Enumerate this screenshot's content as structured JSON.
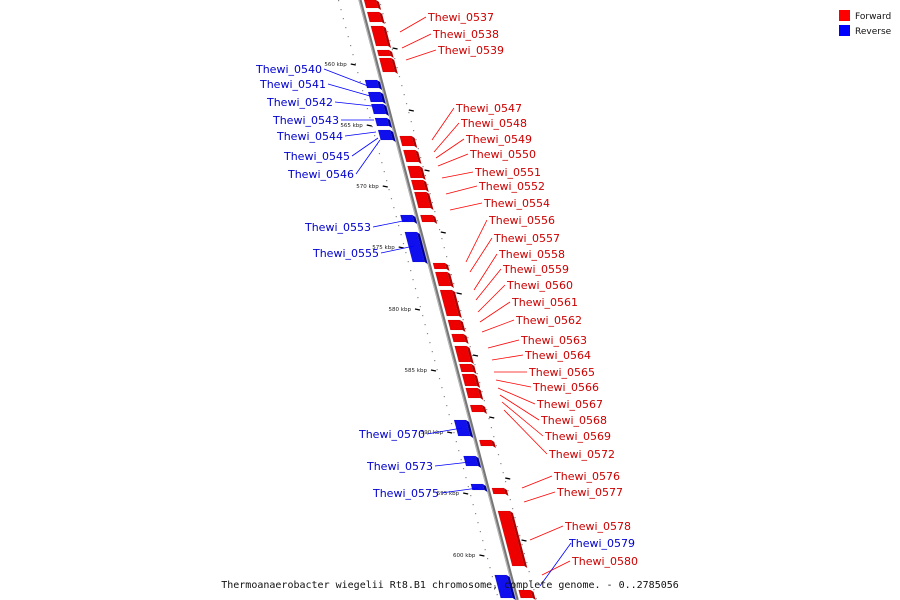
{
  "caption": "Thermoanaerobacter wiegelii Rt8.B1 chromosome, complete genome. - 0..2785056",
  "legend": [
    {
      "label": "Forward",
      "color": "#ff0000"
    },
    {
      "label": "Reverse",
      "color": "#0000ff"
    }
  ],
  "ticks": [
    "560 kbp",
    "565 kbp",
    "570 kbp",
    "575 kbp",
    "580 kbp",
    "585 kbp",
    "590 kbp",
    "595 kbp",
    "600 kbp"
  ],
  "forward_labels": [
    "Thewi_0537",
    "Thewi_0538",
    "Thewi_0539",
    "Thewi_0547",
    "Thewi_0548",
    "Thewi_0549",
    "Thewi_0550",
    "Thewi_0551",
    "Thewi_0552",
    "Thewi_0554",
    "Thewi_0556",
    "Thewi_0557",
    "Thewi_0558",
    "Thewi_0559",
    "Thewi_0560",
    "Thewi_0561",
    "Thewi_0562",
    "Thewi_0563",
    "Thewi_0564",
    "Thewi_0565",
    "Thewi_0566",
    "Thewi_0567",
    "Thewi_0568",
    "Thewi_0569",
    "Thewi_0572",
    "Thewi_0576",
    "Thewi_0577",
    "Thewi_0578",
    "Thewi_0580"
  ],
  "reverse_labels": [
    "Thewi_0540",
    "Thewi_0541",
    "Thewi_0542",
    "Thewi_0543",
    "Thewi_0544",
    "Thewi_0545",
    "Thewi_0546",
    "Thewi_0553",
    "Thewi_0555",
    "Thewi_0570",
    "Thewi_0573",
    "Thewi_0575",
    "Thewi_0579"
  ]
}
